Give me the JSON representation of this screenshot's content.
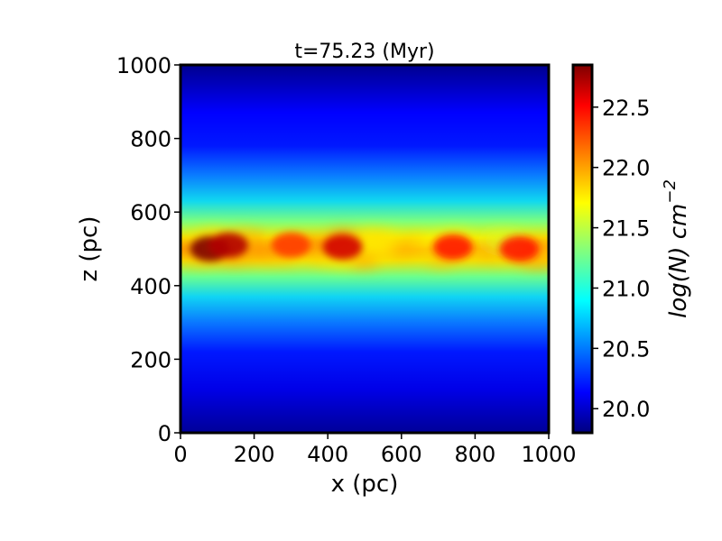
{
  "chart_data": {
    "type": "heatmap",
    "title": "t=75.23 (Myr)",
    "xlabel": "x (pc)",
    "ylabel": "z (pc)",
    "xlim": [
      0,
      1000
    ],
    "ylim": [
      0,
      1000
    ],
    "x_ticks": [
      "0",
      "200",
      "400",
      "600",
      "800",
      "1000"
    ],
    "y_ticks": [
      "0",
      "200",
      "400",
      "600",
      "800",
      "1000"
    ],
    "colormap": "jet",
    "colorbar": {
      "label_base": "log(N) cm",
      "label_exponent": "−2",
      "range": [
        19.8,
        22.85
      ],
      "ticks": [
        "20.0",
        "20.5",
        "21.0",
        "21.5",
        "22.0",
        "22.5"
      ]
    },
    "disk_midplane_z": 500,
    "dense_clumps": [
      {
        "x": 80,
        "z": 500,
        "log_n": 22.85
      },
      {
        "x": 130,
        "z": 510,
        "log_n": 22.7
      },
      {
        "x": 300,
        "z": 510,
        "log_n": 22.3
      },
      {
        "x": 440,
        "z": 505,
        "log_n": 22.6
      },
      {
        "x": 740,
        "z": 505,
        "log_n": 22.4
      },
      {
        "x": 920,
        "z": 500,
        "log_n": 22.4
      }
    ]
  }
}
